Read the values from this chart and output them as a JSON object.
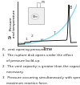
{
  "ylabel": "Pressure\nand temperature",
  "xlabel": "Time",
  "bg_color": "#ffffff",
  "curve_color": "#7fd8e8",
  "line_color": "#000000",
  "caption_lines": [
    "P₀  vent opening pressure",
    "1   The rupture disk opens under the effect",
    "    of pressure build-up.",
    "2   The vent capacity is greater than the capacity",
    "    necessary.",
    "3   Pressure occurring simultaneously with speed,",
    "    maximum reaction force."
  ],
  "caption_fontsize": 3.0
}
